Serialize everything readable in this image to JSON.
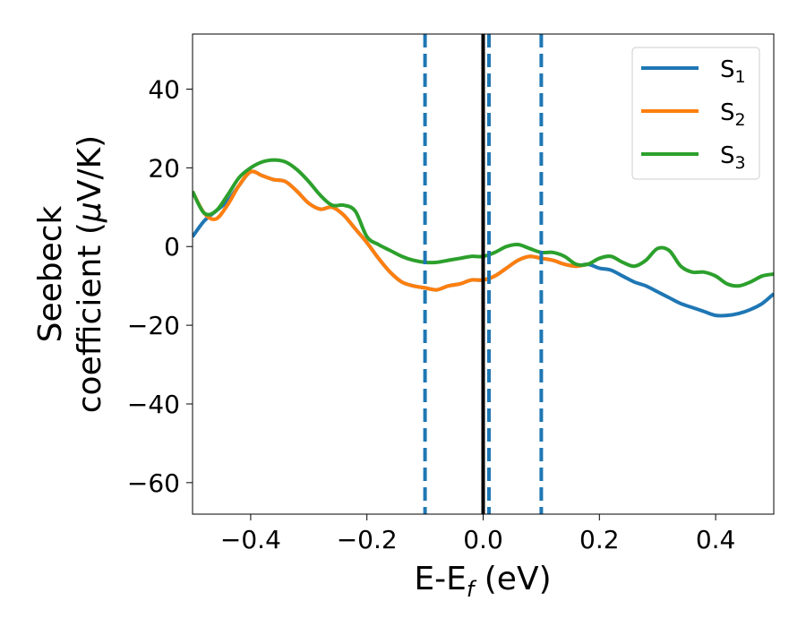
{
  "chart_data": {
    "type": "line",
    "xlabel": {
      "main": "E-E",
      "sub": "f",
      "unit": " (eV)"
    },
    "ylabel": {
      "line1": "Seebeck",
      "line2_pre": "coefficient  (",
      "mu": "μ",
      "line2_post": "V/K)"
    },
    "xlim": [
      -0.5,
      0.5
    ],
    "ylim": [
      -68,
      54
    ],
    "xticks": [
      -0.4,
      -0.2,
      0.0,
      0.2,
      0.4
    ],
    "xtick_labels": [
      "−0.4",
      "−0.2",
      "0.0",
      "0.2",
      "0.4"
    ],
    "yticks": [
      -60,
      -40,
      -20,
      0,
      20,
      40
    ],
    "ytick_labels": [
      "−60",
      "−40",
      "−20",
      "0",
      "20",
      "40"
    ],
    "grid": false,
    "legend_position": "top-right",
    "series": [
      {
        "name": "S",
        "sub": "1",
        "color": "#1f77b4",
        "x": [
          -0.5,
          -0.48,
          -0.46,
          -0.44,
          -0.42,
          -0.4,
          -0.38,
          -0.36,
          -0.34,
          -0.32,
          -0.3,
          -0.28,
          -0.26,
          -0.24,
          -0.22,
          -0.2,
          -0.18,
          -0.16,
          -0.14,
          -0.12,
          -0.1,
          -0.08,
          -0.06,
          -0.04,
          -0.02,
          0.0,
          0.02,
          0.04,
          0.06,
          0.08,
          0.1,
          0.12,
          0.14,
          0.16,
          0.18,
          0.2,
          0.22,
          0.24,
          0.26,
          0.28,
          0.3,
          0.32,
          0.34,
          0.36,
          0.38,
          0.4,
          0.42,
          0.44,
          0.46,
          0.48,
          0.5
        ],
        "y": [
          2.5,
          6.5,
          9.0,
          11.5,
          15.5,
          19.0,
          18.0,
          17.0,
          16.5,
          14.0,
          11.0,
          9.5,
          10.0,
          8.0,
          4.5,
          1.0,
          -3.0,
          -6.5,
          -9.0,
          -10.0,
          -10.5,
          -11.0,
          -10.0,
          -9.5,
          -8.5,
          -8.5,
          -7.5,
          -5.5,
          -3.5,
          -2.5,
          -3.0,
          -3.5,
          -4.5,
          -5.0,
          -4.5,
          -5.5,
          -6.0,
          -7.5,
          -9.0,
          -10.0,
          -11.5,
          -13.0,
          -14.5,
          -15.5,
          -16.5,
          -17.5,
          -17.5,
          -17.0,
          -16.0,
          -14.5,
          -12.0
        ]
      },
      {
        "name": "S",
        "sub": "2",
        "color": "#ff7f0e",
        "x": [
          -0.5,
          -0.48,
          -0.46,
          -0.44,
          -0.42,
          -0.4,
          -0.38,
          -0.36,
          -0.34,
          -0.32,
          -0.3,
          -0.28,
          -0.26,
          -0.24,
          -0.22,
          -0.2,
          -0.18,
          -0.16,
          -0.14,
          -0.12,
          -0.1,
          -0.08,
          -0.06,
          -0.04,
          -0.02,
          0.0,
          0.02,
          0.04,
          0.06,
          0.08,
          0.1,
          0.12,
          0.14,
          0.16,
          0.18
        ],
        "y": [
          14.0,
          8.5,
          7.0,
          10.5,
          15.5,
          19.0,
          18.0,
          17.0,
          16.5,
          14.0,
          11.0,
          9.5,
          10.0,
          8.0,
          4.5,
          1.0,
          -3.0,
          -6.5,
          -9.0,
          -10.0,
          -10.5,
          -11.0,
          -10.0,
          -9.5,
          -8.5,
          -8.5,
          -7.5,
          -5.5,
          -3.5,
          -2.5,
          -3.0,
          -3.5,
          -4.5,
          -5.0,
          -4.5
        ]
      },
      {
        "name": "S",
        "sub": "3",
        "color": "#2ca02c",
        "x": [
          -0.5,
          -0.48,
          -0.46,
          -0.44,
          -0.42,
          -0.4,
          -0.38,
          -0.36,
          -0.34,
          -0.32,
          -0.3,
          -0.28,
          -0.26,
          -0.24,
          -0.22,
          -0.2,
          -0.18,
          -0.16,
          -0.14,
          -0.12,
          -0.1,
          -0.08,
          -0.06,
          -0.04,
          -0.02,
          0.0,
          0.02,
          0.04,
          0.06,
          0.08,
          0.1,
          0.12,
          0.14,
          0.16,
          0.18,
          0.2,
          0.22,
          0.24,
          0.26,
          0.28,
          0.3,
          0.32,
          0.34,
          0.36,
          0.38,
          0.4,
          0.42,
          0.44,
          0.46,
          0.48,
          0.5
        ],
        "y": [
          14.0,
          8.5,
          9.0,
          13.0,
          17.5,
          20.0,
          21.5,
          22.0,
          21.5,
          19.5,
          16.5,
          13.0,
          10.5,
          10.5,
          9.0,
          2.5,
          0.5,
          -1.0,
          -2.5,
          -3.5,
          -4.0,
          -4.0,
          -3.5,
          -3.0,
          -2.5,
          -2.5,
          -1.5,
          0.0,
          0.5,
          -0.5,
          -1.5,
          -1.5,
          -2.5,
          -4.5,
          -4.5,
          -3.0,
          -2.5,
          -4.0,
          -5.0,
          -3.5,
          -0.5,
          -1.0,
          -5.0,
          -6.5,
          -6.5,
          -7.5,
          -9.5,
          -10.0,
          -9.0,
          -7.5,
          -7.0
        ]
      }
    ],
    "vlines": [
      {
        "x": -0.1,
        "style": "dashed",
        "color": "#1f77b4"
      },
      {
        "x": 0.01,
        "style": "dashed",
        "color": "#1f77b4"
      },
      {
        "x": 0.1,
        "style": "dashed",
        "color": "#1f77b4"
      },
      {
        "x": 0.0,
        "style": "solid",
        "color": "#000000"
      }
    ]
  }
}
